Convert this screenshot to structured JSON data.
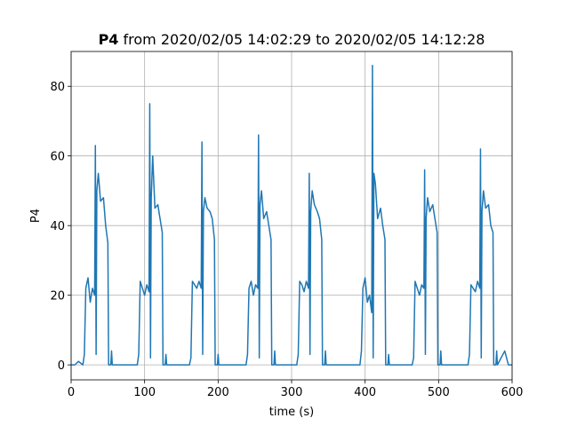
{
  "chart_data": {
    "type": "line",
    "title": {
      "name": "P4",
      "text": "from 2020/02/05 14:02:29 to 2020/02/05 14:12:28"
    },
    "xlabel": "time (s)",
    "ylabel": "P4",
    "xlim": [
      0,
      600
    ],
    "xticks": [
      0,
      100,
      200,
      300,
      400,
      500,
      600
    ],
    "ylim": [
      -4.3,
      90
    ],
    "yticks": [
      0,
      20,
      40,
      60,
      80
    ],
    "grid": true,
    "x": [
      0,
      5,
      10,
      16,
      18,
      20,
      23,
      26,
      29,
      32,
      33,
      34,
      35,
      37,
      40,
      44,
      47,
      50,
      51,
      54,
      55,
      56,
      70,
      90,
      92,
      94,
      97,
      100,
      103,
      106,
      107,
      108,
      109,
      111,
      114,
      118,
      121,
      124,
      125,
      128,
      129,
      130,
      150,
      161,
      163,
      165,
      168,
      171,
      174,
      177,
      178,
      179,
      180,
      182,
      185,
      189,
      192,
      195,
      196,
      199,
      200,
      201,
      220,
      238,
      240,
      242,
      245,
      248,
      251,
      254,
      255,
      256,
      257,
      259,
      262,
      266,
      269,
      272,
      273,
      276,
      277,
      278,
      290,
      307,
      309,
      311,
      314,
      317,
      320,
      323,
      324,
      325,
      326,
      328,
      331,
      335,
      338,
      341,
      342,
      345,
      346,
      347,
      370,
      393,
      395,
      397,
      400,
      403,
      406,
      409,
      410,
      411,
      412,
      414,
      417,
      421,
      424,
      427,
      428,
      431,
      432,
      433,
      450,
      464,
      466,
      468,
      471,
      474,
      477,
      480,
      481,
      482,
      483,
      485,
      488,
      492,
      495,
      498,
      499,
      502,
      503,
      504,
      520,
      540,
      542,
      544,
      547,
      550,
      553,
      556,
      557,
      558,
      559,
      561,
      564,
      568,
      571,
      574,
      575,
      578,
      579,
      580,
      590,
      595,
      600
    ],
    "series": [
      {
        "name": "P4",
        "color": "#1f77b4",
        "values": [
          0,
          0,
          1,
          0,
          3,
          22,
          25,
          18,
          22,
          20,
          63,
          3,
          50,
          55,
          47,
          48,
          40,
          35,
          0,
          0,
          4,
          0,
          0,
          0,
          3,
          24,
          22,
          20,
          23,
          21,
          75,
          2,
          48,
          60,
          45,
          46,
          42,
          38,
          0,
          0,
          3,
          0,
          0,
          0,
          2,
          24,
          23,
          22,
          24,
          22,
          64,
          3,
          44,
          48,
          45,
          44,
          42,
          36,
          0,
          0,
          3,
          0,
          0,
          0,
          3,
          22,
          24,
          20,
          23,
          22,
          66,
          2,
          46,
          50,
          42,
          44,
          40,
          36,
          0,
          0,
          4,
          0,
          0,
          0,
          3,
          24,
          23,
          21,
          24,
          22,
          55,
          3,
          44,
          50,
          46,
          44,
          42,
          36,
          0,
          0,
          4,
          0,
          0,
          0,
          4,
          22,
          25,
          18,
          20,
          15,
          86,
          2,
          55,
          52,
          42,
          45,
          40,
          36,
          0,
          0,
          3,
          0,
          0,
          0,
          2,
          24,
          22,
          20,
          23,
          22,
          56,
          3,
          42,
          48,
          44,
          46,
          42,
          38,
          0,
          0,
          4,
          0,
          0,
          0,
          3,
          23,
          22,
          21,
          24,
          22,
          62,
          2,
          44,
          50,
          45,
          46,
          40,
          38,
          0,
          0,
          4,
          0,
          4,
          0,
          0
        ]
      }
    ]
  }
}
